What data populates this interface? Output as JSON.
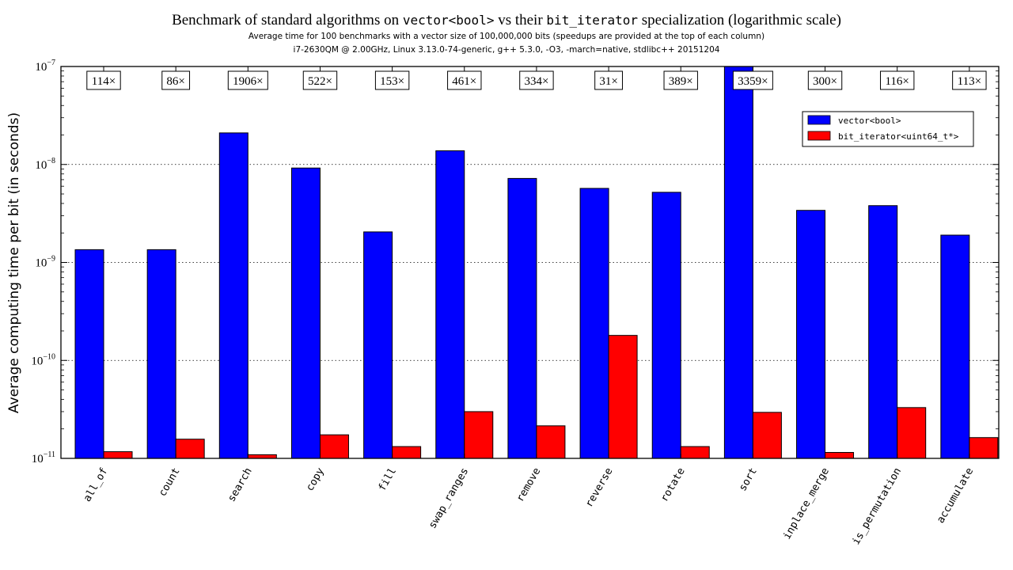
{
  "chart_data": {
    "type": "bar",
    "title": {
      "prefix": "Benchmark of standard algorithms on ",
      "code1": "vector<bool>",
      "middle": " vs their ",
      "code2": "bit_iterator",
      "suffix": " specialization (logarithmic scale)"
    },
    "subtitle_1": "Average time for 100 benchmarks with a vector size of 100,000,000 bits (speedups are provided at the top of each column)",
    "subtitle_2": "i7-2630QM @ 2.00GHz, Linux 3.13.0-74-generic, g++ 5.3.0, -O3, -march=native, stdlibc++ 20151204",
    "ylabel": "Average computing time per bit (in seconds)",
    "yscale": "log",
    "ylim": [
      1e-11,
      1e-07
    ],
    "ytick_labels": [
      {
        "value": 1e-07,
        "base": "10",
        "exp": "−7"
      },
      {
        "value": 1e-08,
        "base": "10",
        "exp": "−8"
      },
      {
        "value": 1e-09,
        "base": "10",
        "exp": "−9"
      },
      {
        "value": 1e-10,
        "base": "10",
        "exp": "−10"
      },
      {
        "value": 1e-11,
        "base": "10",
        "exp": "−11"
      }
    ],
    "grid": "y dotted",
    "legend_position": "upper-right",
    "categories": [
      "all_of",
      "count",
      "search",
      "copy",
      "fill",
      "swap_ranges",
      "remove",
      "reverse",
      "rotate",
      "sort",
      "inplace_merge",
      "is_permutation",
      "accumulate"
    ],
    "series": [
      {
        "name": "vector<bool>",
        "color": "#0000ff",
        "values": [
          1.35e-09,
          1.35e-09,
          2.1e-08,
          9.2e-09,
          2.05e-09,
          1.38e-08,
          7.2e-09,
          5.7e-09,
          5.2e-09,
          1e-07,
          3.4e-09,
          3.8e-09,
          1.9e-09
        ]
      },
      {
        "name": "bit_iterator<uint64_t*>",
        "color": "#ff0000",
        "values": [
          1.17e-11,
          1.57e-11,
          1.09e-11,
          1.74e-11,
          1.32e-11,
          3e-11,
          2.15e-11,
          1.8e-10,
          1.32e-11,
          2.95e-11,
          1.15e-11,
          3.3e-11,
          1.63e-11
        ]
      }
    ],
    "speedups": [
      "114×",
      "86×",
      "1906×",
      "522×",
      "153×",
      "461×",
      "334×",
      "31×",
      "389×",
      "3359×",
      "300×",
      "116×",
      "113×"
    ]
  }
}
